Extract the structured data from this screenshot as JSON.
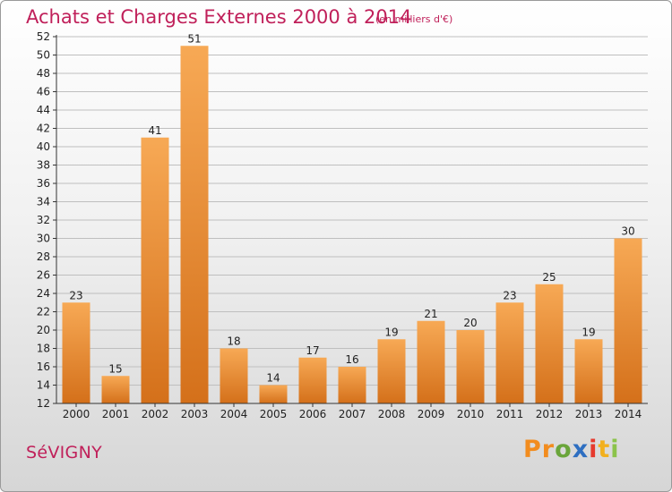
{
  "header": {
    "title": "Achats et Charges Externes 2000 à 2014",
    "unit": "(en milliers d'€)"
  },
  "footer": {
    "commune": "SéVIGNY",
    "logo_letters": [
      "P",
      "r",
      "o",
      "x",
      "i",
      "t",
      "i"
    ],
    "logo_colors": [
      "#f28c1e",
      "#f28c1e",
      "#6aa53a",
      "#2e6fc1",
      "#e63a2e",
      "#f2b01e",
      "#8bc34a"
    ]
  },
  "colors": {
    "bar_top": "#f7a955",
    "bar_bottom": "#d4701a",
    "axis": "#333333",
    "grid": "#bfbfbf",
    "text": "#222222",
    "accent": "#c0205a"
  },
  "chart_data": {
    "type": "bar",
    "categories": [
      "2000",
      "2001",
      "2002",
      "2003",
      "2004",
      "2005",
      "2006",
      "2007",
      "2008",
      "2009",
      "2010",
      "2011",
      "2012",
      "2013",
      "2014"
    ],
    "values": [
      23,
      15,
      41,
      51,
      18,
      14,
      17,
      16,
      19,
      21,
      20,
      23,
      25,
      19,
      30
    ],
    "title": "Achats et Charges Externes 2000 à 2014",
    "ylim": [
      12,
      52
    ],
    "yticks": [
      12,
      14,
      16,
      18,
      20,
      22,
      24,
      26,
      28,
      30,
      32,
      34,
      36,
      38,
      40,
      42,
      44,
      46,
      48,
      50,
      52
    ],
    "grid": true,
    "legend": "none"
  }
}
